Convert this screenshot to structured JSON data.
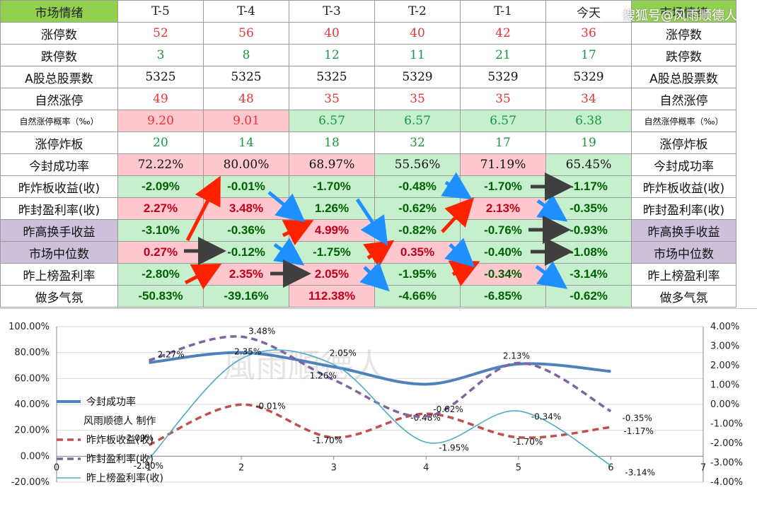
{
  "table": {
    "header": [
      "市场情绪",
      "T-5",
      "T-4",
      "T-3",
      "T-2",
      "T-1",
      "今天",
      "市场情绪"
    ],
    "rows": [
      {
        "label": "涨停数",
        "values": [
          "52",
          "56",
          "40",
          "40",
          "42",
          "36"
        ],
        "style": "red",
        "bg": [
          "",
          "",
          "",
          "",
          "",
          ""
        ]
      },
      {
        "label": "跌停数",
        "values": [
          "3",
          "8",
          "12",
          "11",
          "21",
          "17"
        ],
        "style": "green",
        "bg": [
          "",
          "",
          "",
          "",
          "",
          ""
        ]
      },
      {
        "label": "A股总股票数",
        "values": [
          "5325",
          "5325",
          "5325",
          "5329",
          "5329",
          "5329"
        ],
        "style": "plain",
        "bg": [
          "",
          "",
          "",
          "",
          "",
          ""
        ]
      },
      {
        "label": "自然涨停",
        "values": [
          "49",
          "48",
          "35",
          "35",
          "35",
          "34"
        ],
        "style": "red",
        "bg": [
          "",
          "",
          "",
          "",
          "",
          ""
        ]
      },
      {
        "label": "自然涨停概率（‰）",
        "small": true,
        "values": [
          "9.20",
          "9.01",
          "6.57",
          "6.57",
          "6.57",
          "6.38"
        ],
        "style": "mixed",
        "colors": [
          "red",
          "red",
          "green",
          "green",
          "green",
          "green"
        ],
        "bg": [
          "pink",
          "pink",
          "green",
          "green",
          "green",
          "green"
        ]
      },
      {
        "label": "涨停炸板",
        "values": [
          "20",
          "14",
          "18",
          "32",
          "17",
          "19"
        ],
        "style": "green",
        "bg": [
          "",
          "",
          "",
          "",
          "",
          ""
        ]
      },
      {
        "label": "今封成功率",
        "values": [
          "72.22%",
          "80.00%",
          "68.97%",
          "55.56%",
          "71.19%",
          "65.45%"
        ],
        "style": "plain",
        "bg": [
          "pink",
          "pink",
          "pink",
          "green",
          "pink",
          "green"
        ]
      },
      {
        "label": "昨炸板收益(收)",
        "values": [
          "-2.09%",
          "-0.01%",
          "-1.70%",
          "-0.48%",
          "-1.70%",
          "-1.17%"
        ],
        "style": "bold",
        "colors": [
          "green",
          "green",
          "green",
          "green",
          "green",
          "green"
        ],
        "bg": [
          "green",
          "green",
          "green",
          "green",
          "green",
          "green"
        ]
      },
      {
        "label": "昨封盈利率(收)",
        "values": [
          "2.27%",
          "3.48%",
          "1.26%",
          "-0.62%",
          "2.13%",
          "-0.35%"
        ],
        "style": "bold",
        "colors": [
          "red",
          "red",
          "green",
          "green",
          "red",
          "green"
        ],
        "bg": [
          "pink",
          "pink",
          "green",
          "green",
          "pink",
          "green"
        ]
      },
      {
        "label": "昨高换手收益",
        "purple": true,
        "values": [
          "-3.10%",
          "-0.36%",
          "4.99%",
          "-0.82%",
          "-0.76%",
          "-0.93%"
        ],
        "style": "bold",
        "colors": [
          "green",
          "green",
          "red",
          "green",
          "green",
          "green"
        ],
        "bg": [
          "green",
          "green",
          "pink",
          "green",
          "green",
          "green"
        ]
      },
      {
        "label": "市场中位数",
        "purple": true,
        "values": [
          "0.27%",
          "-0.12%",
          "-1.75%",
          "0.35%",
          "-0.40%",
          "-1.08%"
        ],
        "style": "bold",
        "colors": [
          "red",
          "green",
          "green",
          "red",
          "green",
          "green"
        ],
        "bg": [
          "pink",
          "green",
          "green",
          "pink",
          "green",
          "green"
        ]
      },
      {
        "label": "昨上榜盈利率",
        "values": [
          "-2.80%",
          "2.35%",
          "2.05%",
          "-1.95%",
          "-0.34%",
          "-3.14%"
        ],
        "style": "bold",
        "colors": [
          "green",
          "red",
          "red",
          "green",
          "green",
          "green"
        ],
        "bg": [
          "green",
          "pink",
          "pink",
          "green",
          "pink",
          "green"
        ]
      },
      {
        "label": "做多气氛",
        "values": [
          "-50.83%",
          "-39.16%",
          "112.38%",
          "-4.66%",
          "-6.85%",
          "-0.62%"
        ],
        "style": "bold",
        "colors": [
          "green",
          "green",
          "red",
          "green",
          "green",
          "green"
        ],
        "bg": [
          "green",
          "green",
          "pink",
          "green",
          "green",
          "green"
        ]
      }
    ]
  },
  "watermark": "搜狐号@风雨顺德人",
  "chart_watermark": "風雨順德人",
  "colors": {
    "blue": "#4f81bd",
    "red": "#c0504d",
    "purple": "#8064a2",
    "cyan": "#4bacc6",
    "red_arrow": "#ff2200",
    "blue_arrow": "#1e90ff",
    "dark_arrow": "#3f3f3f"
  },
  "chart_data": {
    "type": "line",
    "x": [
      1,
      2,
      3,
      4,
      5,
      6
    ],
    "xlim": [
      0,
      7
    ],
    "x_ticks": [
      "0",
      "1",
      "2",
      "3",
      "4",
      "5",
      "6",
      "7"
    ],
    "y_left_lim": [
      -20,
      100
    ],
    "y_left_ticks": [
      "100.00%",
      "80.00%",
      "60.00%",
      "40.00%",
      "20.00%",
      "0.00%",
      "-20.00%"
    ],
    "y_right_lim": [
      -4,
      4
    ],
    "y_right_ticks": [
      "4.00%",
      "3.00%",
      "2.00%",
      "1.00%",
      "0.00%",
      "-1.00%",
      "-2.00%",
      "-3.00%",
      "-4.00%"
    ],
    "series": [
      {
        "name": "今封成功率",
        "axis": "left",
        "values": [
          72.22,
          80.0,
          68.97,
          55.56,
          71.19,
          65.45
        ],
        "style": "solid-thick",
        "color": "#4f81bd"
      },
      {
        "name": "昨炸板收益(收)",
        "axis": "right",
        "values": [
          -2.09,
          -0.01,
          -1.7,
          -0.48,
          -1.7,
          -1.17
        ],
        "style": "dashed",
        "color": "#c0504d",
        "labels": [
          "-2.09%",
          "-0.01%",
          "-1.70%",
          "-0.48%",
          "-1.70%",
          "-1.17%"
        ]
      },
      {
        "name": "昨封盈利率(收)",
        "axis": "right",
        "values": [
          2.27,
          3.48,
          1.26,
          -0.62,
          2.13,
          -0.35
        ],
        "style": "dashed",
        "color": "#8064a2",
        "labels": [
          "2.27%",
          "3.48%",
          "1.26%",
          "-0.62%",
          "2.13%",
          "-0.35%"
        ]
      },
      {
        "name": "昨上榜盈利率(收)",
        "axis": "right",
        "values": [
          -2.8,
          2.35,
          2.05,
          -1.95,
          -0.34,
          -3.14
        ],
        "style": "solid-thin",
        "color": "#4bacc6",
        "labels": [
          "-2.80%",
          "2.35%",
          "2.05%",
          "-1.95%",
          "-0.34%",
          "-3.14%"
        ]
      }
    ],
    "legend_extra": "风雨顺德人 制作",
    "grid": true
  }
}
